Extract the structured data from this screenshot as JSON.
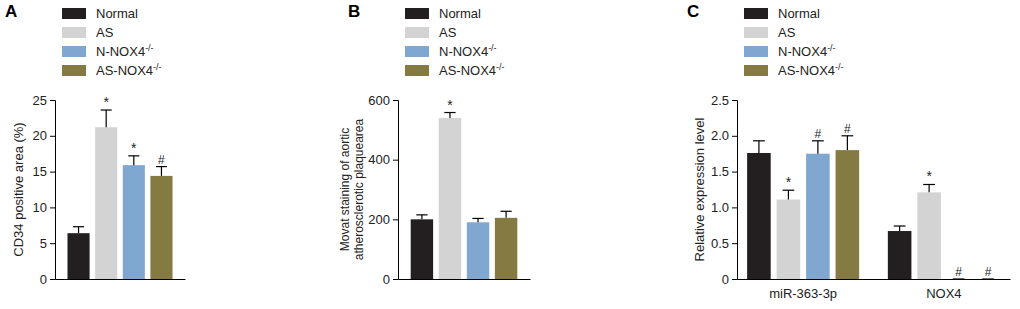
{
  "chart_data": [
    {
      "type": "bar",
      "title": "A",
      "y_label": [
        "CD34 positive area (%)"
      ],
      "categories": [
        null
      ],
      "ylim": [
        0,
        25
      ],
      "yticks": [
        0,
        5,
        10,
        15,
        20,
        25
      ],
      "legend": "top-left",
      "series": [
        {
          "name": "Normal",
          "color": "#231f20",
          "values": [
            6.4
          ],
          "errors": [
            0.9
          ],
          "annotations": [
            null
          ]
        },
        {
          "name": "AS",
          "color": "#d3d3d3",
          "values": [
            21.2
          ],
          "errors": [
            2.4
          ],
          "annotations": [
            "*"
          ]
        },
        {
          "name": "N-NOX4-/-",
          "color": "#7fa7cf",
          "values": [
            15.9
          ],
          "errors": [
            1.3
          ],
          "annotations": [
            "*"
          ]
        },
        {
          "name": "AS-NOX4-/-",
          "color": "#857a41",
          "values": [
            14.4
          ],
          "errors": [
            1.3
          ],
          "annotations": [
            "#"
          ]
        }
      ]
    },
    {
      "type": "bar",
      "title": "B",
      "y_label": [
        "Movat staining of aortic",
        "atherosclerotic plaquearea"
      ],
      "categories": [
        null
      ],
      "ylim": [
        0,
        600
      ],
      "yticks": [
        0,
        200,
        400,
        600
      ],
      "legend": "top-left",
      "series": [
        {
          "name": "Normal",
          "color": "#231f20",
          "values": [
            200
          ],
          "errors": [
            15
          ],
          "annotations": [
            null
          ]
        },
        {
          "name": "AS",
          "color": "#d3d3d3",
          "values": [
            540
          ],
          "errors": [
            18
          ],
          "annotations": [
            "*"
          ]
        },
        {
          "name": "N-NOX4-/-",
          "color": "#7fa7cf",
          "values": [
            190
          ],
          "errors": [
            13
          ],
          "annotations": [
            null
          ]
        },
        {
          "name": "AS-NOX4-/-",
          "color": "#857a41",
          "values": [
            205
          ],
          "errors": [
            22
          ],
          "annotations": [
            null
          ]
        }
      ]
    },
    {
      "type": "bar",
      "title": "C",
      "y_label": [
        "Relative expression level"
      ],
      "categories": [
        "miR-363-3p",
        "NOX4"
      ],
      "ylim": [
        0,
        2.5
      ],
      "yticks": [
        0,
        0.5,
        {
          "value": 1,
          "label": "1.0"
        },
        1.5,
        {
          "value": 2,
          "label": "2.0"
        },
        2.5
      ],
      "legend": "top-left",
      "series": [
        {
          "name": "Normal",
          "color": "#231f20",
          "values": [
            1.76,
            0.67
          ],
          "errors": [
            0.17,
            0.07
          ],
          "annotations": [
            null,
            null
          ]
        },
        {
          "name": "AS",
          "color": "#d3d3d3",
          "values": [
            1.11,
            1.21
          ],
          "errors": [
            0.13,
            0.11
          ],
          "annotations": [
            "*",
            "*"
          ]
        },
        {
          "name": "N-NOX4-/-",
          "color": "#7fa7cf",
          "values": [
            1.75,
            0
          ],
          "errors": [
            0.18,
            0
          ],
          "annotations": [
            "#",
            "#"
          ]
        },
        {
          "name": "AS-NOX4-/-",
          "color": "#857a41",
          "values": [
            1.8,
            0
          ],
          "errors": [
            0.2,
            0
          ],
          "annotations": [
            "#",
            "#"
          ]
        }
      ]
    }
  ]
}
